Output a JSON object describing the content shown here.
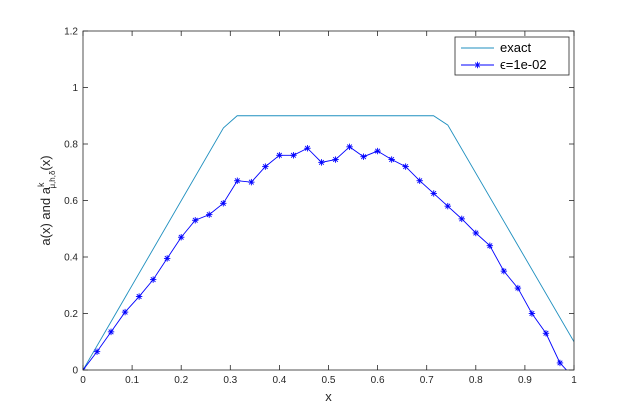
{
  "chart_data": {
    "type": "line",
    "xlabel": "x",
    "ylabel": "a(x) and a",
    "ylabel_sup": "k",
    "ylabel_sub": "μ,h,δ",
    "ylabel_tail": "(x)",
    "xlim": [
      0,
      1
    ],
    "ylim": [
      0,
      1.2
    ],
    "xticks": [
      0,
      0.1,
      0.2,
      0.3,
      0.4,
      0.5,
      0.6,
      0.7,
      0.8,
      0.9,
      1
    ],
    "xtick_labels": [
      "0",
      "0.1",
      "0.2",
      "0.3",
      "0.4",
      "0.5",
      "0.6",
      "0.7",
      "0.8",
      "0.9",
      "1"
    ],
    "yticks": [
      0,
      0.2,
      0.4,
      0.6,
      0.8,
      1,
      1.2
    ],
    "ytick_labels": [
      "0",
      "0.2",
      "0.4",
      "0.6",
      "0.8",
      "1",
      "1.2"
    ],
    "grid": false,
    "legend_position": "top-right",
    "series": [
      {
        "name": "exact",
        "color": "#1f8fbf",
        "marker": "none",
        "x": [
          0,
          0.286,
          0.314,
          0.714,
          0.743,
          1.0
        ],
        "y": [
          0,
          0.857,
          0.9,
          0.9,
          0.867,
          0.1
        ]
      },
      {
        "name": "ϵ=1e-02",
        "color": "#0000ff",
        "marker": "asterisk",
        "x": [
          0,
          0.0286,
          0.0571,
          0.0857,
          0.1143,
          0.1429,
          0.1714,
          0.2,
          0.2286,
          0.2571,
          0.2857,
          0.3143,
          0.3429,
          0.3714,
          0.4,
          0.4286,
          0.4571,
          0.4857,
          0.5143,
          0.5429,
          0.5714,
          0.6,
          0.6286,
          0.6571,
          0.6857,
          0.7143,
          0.7429,
          0.7714,
          0.8,
          0.8286,
          0.8571,
          0.8857,
          0.9143,
          0.9429,
          0.9714,
          0.99
        ],
        "y": [
          0,
          0.065,
          0.135,
          0.205,
          0.26,
          0.32,
          0.395,
          0.47,
          0.53,
          0.55,
          0.59,
          0.67,
          0.665,
          0.72,
          0.76,
          0.76,
          0.785,
          0.735,
          0.745,
          0.79,
          0.755,
          0.775,
          0.745,
          0.72,
          0.67,
          0.625,
          0.58,
          0.535,
          0.485,
          0.44,
          0.35,
          0.29,
          0.2,
          0.13,
          0.025,
          -0.01
        ]
      }
    ]
  }
}
